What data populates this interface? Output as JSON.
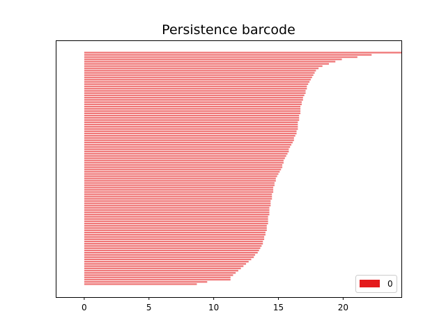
{
  "chart_data": {
    "type": "bar",
    "orientation": "horizontal",
    "title": "Persistence barcode",
    "xlabel": "",
    "ylabel": "",
    "xlim": [
      -2.2,
      24.5
    ],
    "x_ticks": [
      0,
      5,
      10,
      15,
      20
    ],
    "y_ticks_visible": false,
    "grid": false,
    "legend": {
      "placement": "lower-right",
      "entries": [
        {
          "label": "0",
          "color": "#e41a1c"
        }
      ]
    },
    "bar_color": "#e41a1c",
    "bar_alpha": 0.6,
    "series": [
      {
        "name": "0",
        "births": "all bars start at 0",
        "deaths": [
          24.5,
          22.2,
          21.1,
          19.9,
          19.4,
          18.9,
          18.4,
          18.1,
          17.9,
          17.8,
          17.7,
          17.6,
          17.5,
          17.4,
          17.3,
          17.2,
          17.2,
          17.1,
          17.1,
          17.0,
          16.9,
          16.9,
          16.8,
          16.8,
          16.7,
          16.7,
          16.7,
          16.7,
          16.6,
          16.6,
          16.6,
          16.5,
          16.5,
          16.5,
          16.5,
          16.4,
          16.4,
          16.3,
          16.2,
          16.2,
          16.1,
          16.0,
          15.9,
          15.8,
          15.8,
          15.7,
          15.6,
          15.5,
          15.4,
          15.4,
          15.3,
          15.3,
          15.2,
          15.1,
          15.0,
          14.9,
          14.8,
          14.8,
          14.7,
          14.7,
          14.6,
          14.6,
          14.6,
          14.5,
          14.5,
          14.5,
          14.4,
          14.4,
          14.4,
          14.3,
          14.3,
          14.3,
          14.3,
          14.2,
          14.2,
          14.2,
          14.2,
          14.1,
          14.1,
          14.1,
          14.0,
          14.0,
          13.9,
          13.9,
          13.8,
          13.8,
          13.7,
          13.6,
          13.5,
          13.4,
          13.2,
          13.1,
          12.9,
          12.7,
          12.5,
          12.3,
          12.1,
          11.9,
          11.7,
          11.5,
          11.3,
          11.3,
          9.5,
          8.7
        ]
      }
    ]
  }
}
